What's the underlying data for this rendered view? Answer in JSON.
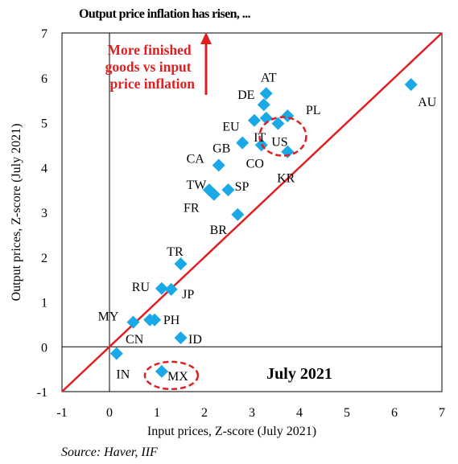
{
  "chart_data": {
    "type": "scatter",
    "title": "Output price inflation has risen, ...",
    "xlabel": "Input prices, Z-score (July 2021)",
    "ylabel": "Output prices, Z-score (July 2021)",
    "xlim": [
      -1,
      7
    ],
    "ylim": [
      -1,
      7
    ],
    "x_ticks": [
      "-1",
      "0",
      "1",
      "2",
      "3",
      "4",
      "5",
      "6",
      "7"
    ],
    "y_ticks": [
      "-1",
      "0",
      "1",
      "2",
      "3",
      "4",
      "5",
      "6",
      "7"
    ],
    "grid": false,
    "marker_color": "#1ba8e6",
    "line_color": "#e02020",
    "diagonal": {
      "from": [
        -1,
        -1
      ],
      "to": [
        7,
        7
      ]
    },
    "points": [
      {
        "label": "AU",
        "x": 6.35,
        "y": 5.85
      },
      {
        "label": "AT",
        "x": 3.3,
        "y": 5.65
      },
      {
        "label": "DE",
        "x": 3.25,
        "y": 5.4
      },
      {
        "label": "PL",
        "x": 3.75,
        "y": 5.15
      },
      {
        "label": "EU",
        "x": 3.05,
        "y": 5.05
      },
      {
        "label": "IT",
        "x": 3.3,
        "y": 5.1
      },
      {
        "label": "US",
        "x": 3.55,
        "y": 4.98
      },
      {
        "label": "GB",
        "x": 2.8,
        "y": 4.55
      },
      {
        "label": "CO",
        "x": 3.2,
        "y": 4.5
      },
      {
        "label": "KR",
        "x": 3.75,
        "y": 4.35
      },
      {
        "label": "CA",
        "x": 2.3,
        "y": 4.05
      },
      {
        "label": "TW",
        "x": 2.1,
        "y": 3.5
      },
      {
        "label": "FR",
        "x": 2.2,
        "y": 3.4
      },
      {
        "label": "SP",
        "x": 2.5,
        "y": 3.5
      },
      {
        "label": "BR",
        "x": 2.7,
        "y": 2.95
      },
      {
        "label": "TR",
        "x": 1.5,
        "y": 1.85
      },
      {
        "label": "RU",
        "x": 1.1,
        "y": 1.3
      },
      {
        "label": "JP",
        "x": 1.3,
        "y": 1.28
      },
      {
        "label": "MY",
        "x": 0.5,
        "y": 0.55
      },
      {
        "label": "PH",
        "x": 0.95,
        "y": 0.6
      },
      {
        "label": "CN",
        "x": 0.85,
        "y": 0.6
      },
      {
        "label": "ID",
        "x": 1.5,
        "y": 0.2
      },
      {
        "label": "IN",
        "x": 0.15,
        "y": -0.15
      },
      {
        "label": "MX",
        "x": 1.1,
        "y": -0.55
      }
    ],
    "highlighted": [
      "US",
      "MX"
    ],
    "annotations": {
      "arrow_text_lines": [
        "More finished",
        "goods vs input",
        "price inflation"
      ],
      "date_label": "July 2021"
    }
  },
  "source": "Source: Haver, IIF"
}
